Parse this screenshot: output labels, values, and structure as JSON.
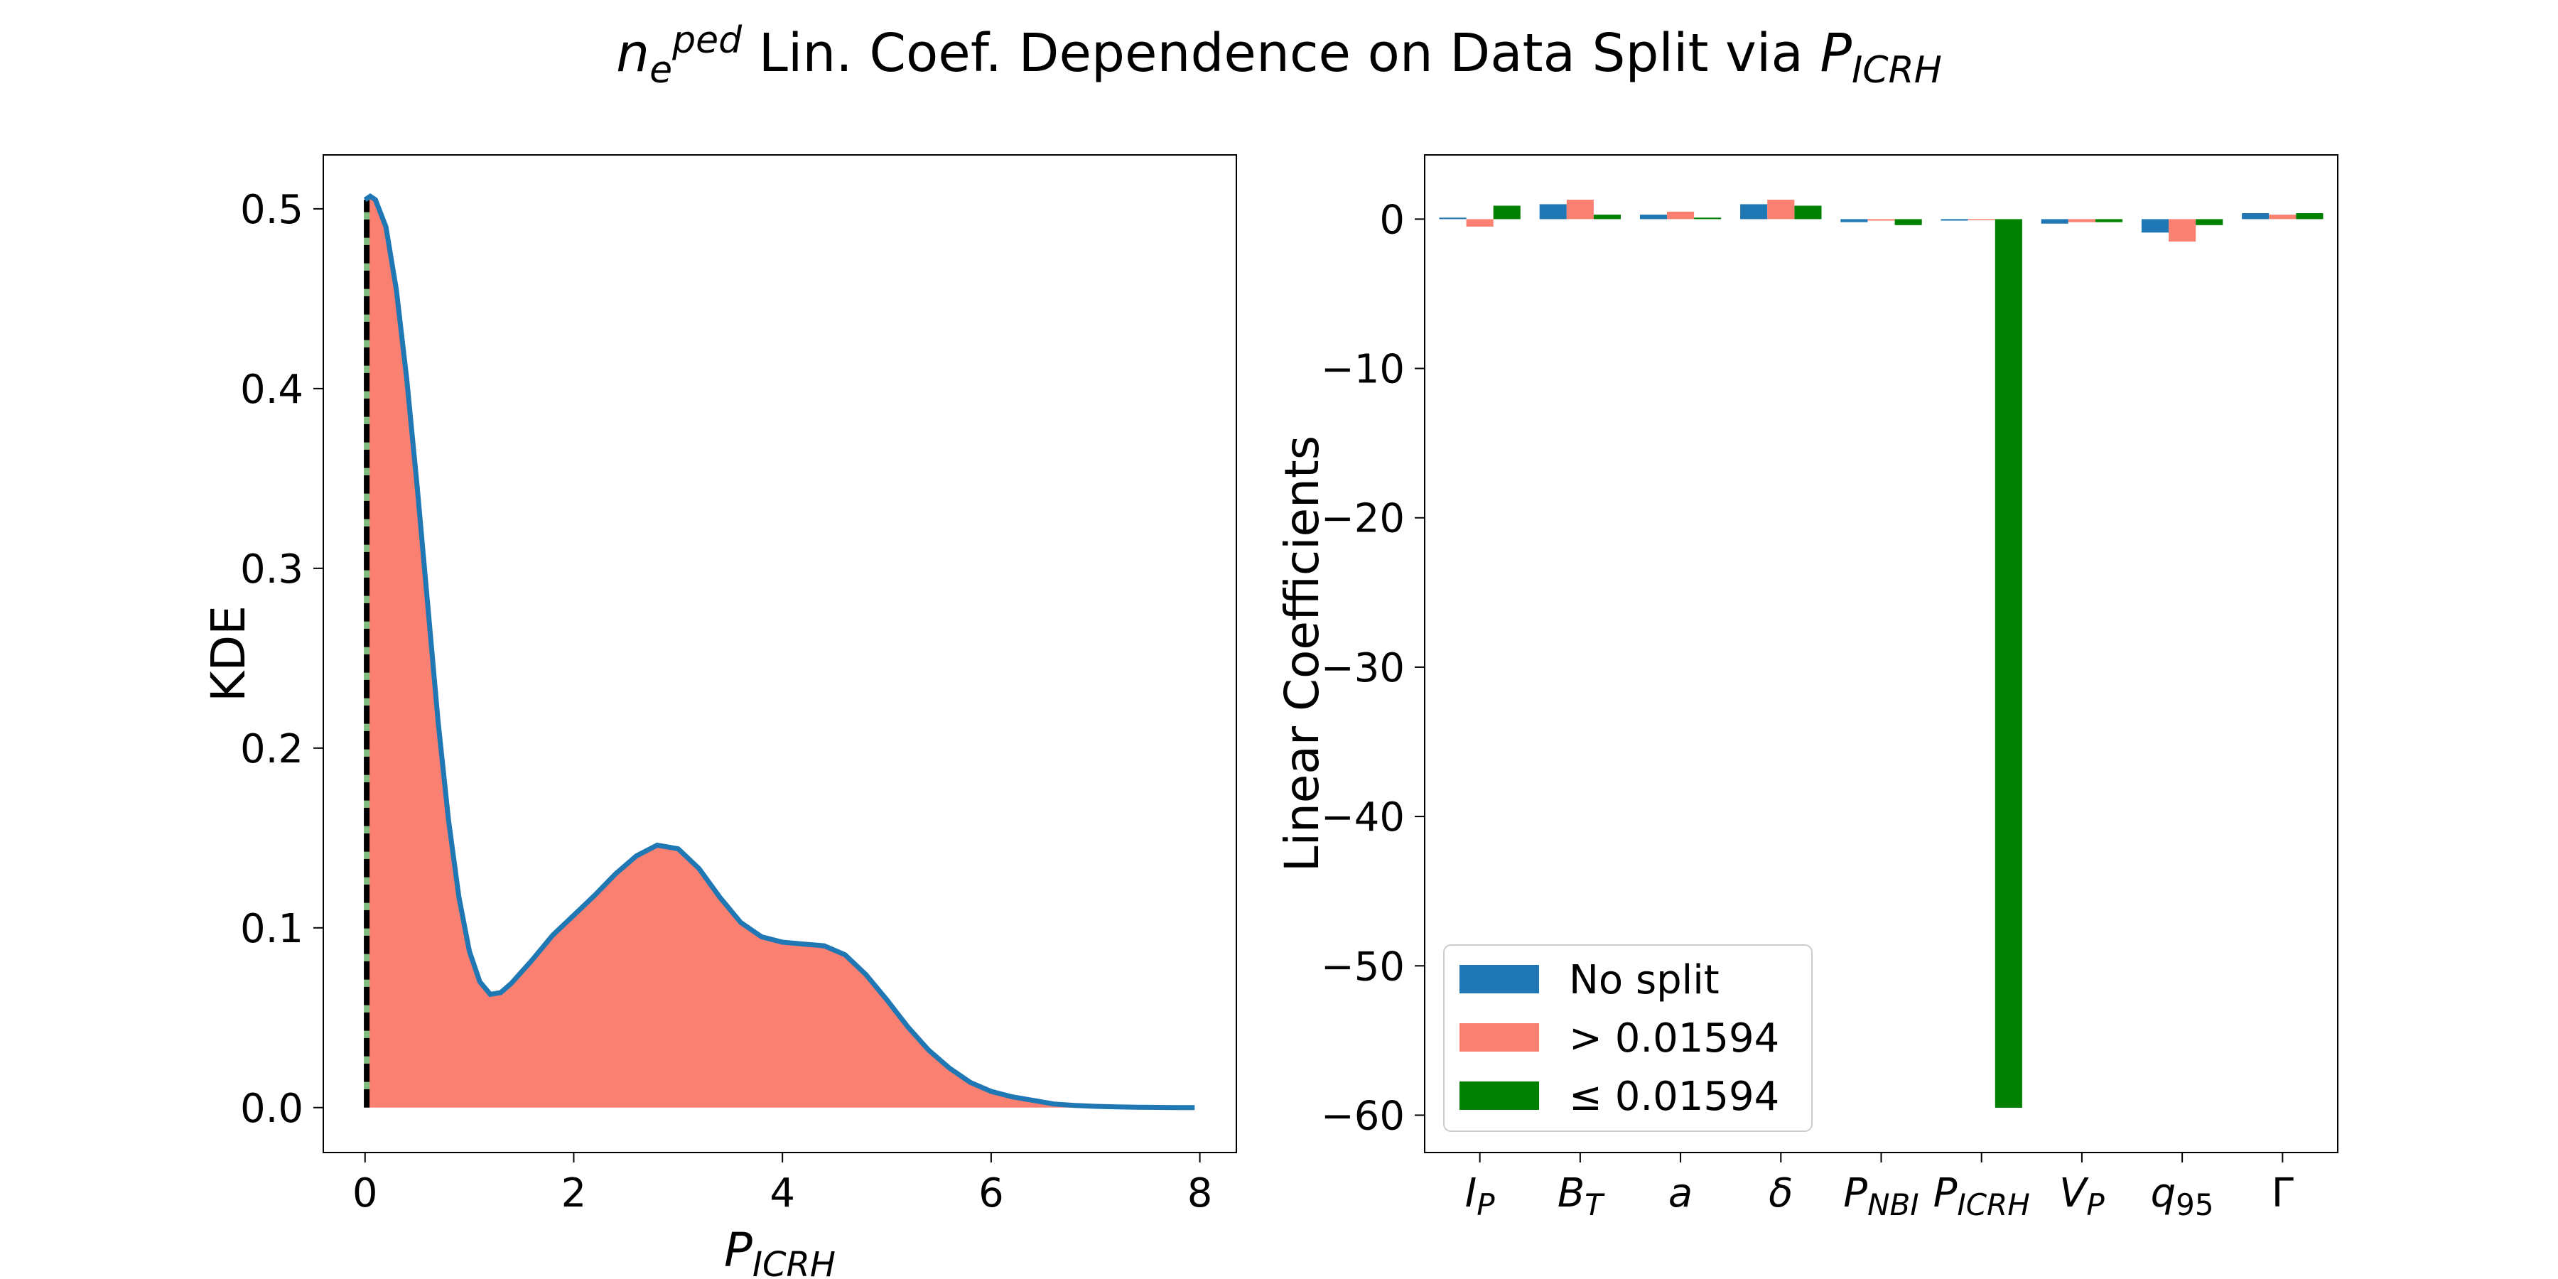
{
  "figure": {
    "title_parts": [
      {
        "text": "n",
        "italic": true
      },
      {
        "text": "e",
        "italic": true,
        "sub": true
      },
      {
        "text": "ped",
        "italic": true,
        "sup": true
      },
      {
        "text": " Lin. Coef. Dependence on Data Split via ",
        "italic": false
      },
      {
        "text": "P",
        "italic": true
      },
      {
        "text": "ICRH",
        "italic": true,
        "sub": true
      }
    ]
  },
  "colors": {
    "kde_line": "#1f77b4",
    "kde_fill": "#fa8072",
    "threshold_line": "#000000",
    "threshold_dash": "#7fbf7f",
    "no_split": "#1f77b4",
    "above": "#fa8072",
    "below": "#008000"
  },
  "chart_data": [
    {
      "type": "area",
      "xlabel": {
        "main": "P",
        "sub": "ICRH"
      },
      "ylabel": "KDE",
      "xlim": [
        -0.4,
        8.35
      ],
      "ylim": [
        -0.025,
        0.53
      ],
      "xticks": [
        0,
        2,
        4,
        6,
        8
      ],
      "yticks": [
        0.0,
        0.1,
        0.2,
        0.3,
        0.4,
        0.5
      ],
      "ytick_labels": [
        "0.0",
        "0.1",
        "0.2",
        "0.3",
        "0.4",
        "0.5"
      ],
      "threshold_x": 0.01594,
      "x": [
        0.0,
        0.05,
        0.1,
        0.2,
        0.3,
        0.4,
        0.5,
        0.6,
        0.7,
        0.8,
        0.9,
        1.0,
        1.1,
        1.2,
        1.3,
        1.4,
        1.6,
        1.8,
        2.0,
        2.2,
        2.4,
        2.6,
        2.8,
        3.0,
        3.2,
        3.4,
        3.6,
        3.8,
        4.0,
        4.2,
        4.4,
        4.6,
        4.8,
        5.0,
        5.2,
        5.4,
        5.6,
        5.8,
        6.0,
        6.2,
        6.4,
        6.6,
        6.8,
        7.0,
        7.2,
        7.4,
        7.6,
        7.8,
        7.95
      ],
      "y": [
        0.505,
        0.507,
        0.505,
        0.49,
        0.455,
        0.405,
        0.345,
        0.28,
        0.215,
        0.16,
        0.117,
        0.087,
        0.07,
        0.063,
        0.064,
        0.069,
        0.082,
        0.096,
        0.107,
        0.118,
        0.13,
        0.14,
        0.146,
        0.144,
        0.133,
        0.117,
        0.103,
        0.095,
        0.092,
        0.091,
        0.09,
        0.085,
        0.074,
        0.06,
        0.045,
        0.032,
        0.022,
        0.014,
        0.009,
        0.006,
        0.004,
        0.002,
        0.0012,
        0.0007,
        0.0004,
        0.0002,
        0.0001,
        0.0,
        0.0
      ]
    },
    {
      "type": "bar",
      "ylabel": "Linear Coefficients",
      "ylim": [
        -62.5,
        4.3
      ],
      "yticks": [
        0,
        -10,
        -20,
        -30,
        -40,
        -50,
        -60
      ],
      "ytick_labels": [
        "0",
        "−10",
        "−20",
        "−30",
        "−40",
        "−50",
        "−60"
      ],
      "categories": [
        {
          "main": "I",
          "sub": "P"
        },
        {
          "main": "B",
          "sub": "T"
        },
        {
          "main": "a",
          "sub": ""
        },
        {
          "main": "δ",
          "sub": ""
        },
        {
          "main": "P",
          "sub": "NBI"
        },
        {
          "main": "P",
          "sub": "ICRH"
        },
        {
          "main": "V",
          "sub": "P"
        },
        {
          "main": "q",
          "sub": "95",
          "sub_upright": true
        },
        {
          "main": "Γ",
          "sub": "",
          "upright": true
        }
      ],
      "series": [
        {
          "name": "No split",
          "values": [
            0.1,
            1.0,
            0.3,
            1.0,
            -0.2,
            -0.1,
            -0.3,
            -0.9,
            0.4
          ]
        },
        {
          "name": "> 0.01594",
          "values": [
            -0.5,
            1.3,
            0.5,
            1.3,
            -0.1,
            0.0,
            -0.2,
            -1.5,
            0.3
          ]
        },
        {
          "name": "≤ 0.01594",
          "values": [
            0.9,
            0.3,
            0.1,
            0.9,
            -0.4,
            -59.5,
            -0.2,
            -0.4,
            0.4
          ]
        }
      ],
      "legend_placement": "lower-left"
    }
  ]
}
